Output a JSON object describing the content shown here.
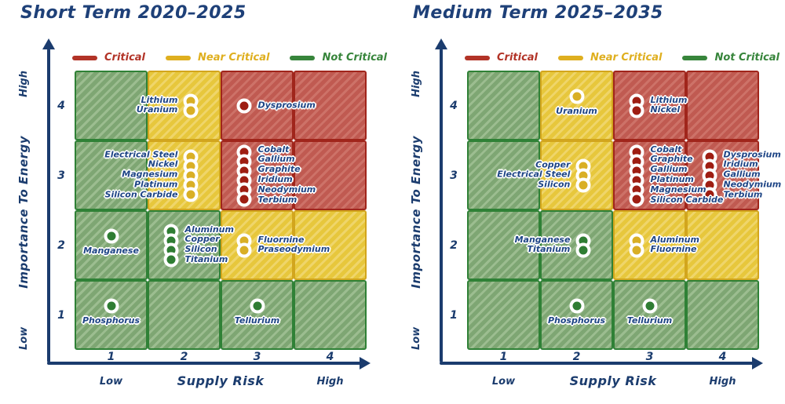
{
  "colors": {
    "title": "#1E4078",
    "axis": "#1B3C6E",
    "label-text": "#1E4586",
    "critical-fill": "#C05A51",
    "critical-stripe": "#CD7268",
    "critical-border": "#A0251B",
    "critical-dot": "#9E1D12",
    "critical-text": "#B23327",
    "near-fill": "#E7C73C",
    "near-stripe": "#EFD56A",
    "near-border": "#D2A51D",
    "near-dot": "#D9AF25",
    "near-text": "#DFAF1F",
    "not-fill": "#7EA673",
    "not-stripe": "#9CBD90",
    "not-border": "#2F8136",
    "not-dot": "#2F7D33",
    "not-text": "#37853B"
  },
  "legend": [
    {
      "key": "critical",
      "label": "Critical"
    },
    {
      "key": "near",
      "label": "Near Critical"
    },
    {
      "key": "not",
      "label": "Not Critical"
    }
  ],
  "chart_data": [
    {
      "type": "heatmap",
      "title": "Short Term 2020–2025",
      "xlabel": "Supply Risk",
      "ylabel": "Importance To Energy",
      "x_ticks": [
        "1",
        "2",
        "3",
        "4"
      ],
      "y_ticks": [
        "4",
        "3",
        "2",
        "1"
      ],
      "x_end_labels": [
        "Low",
        "High"
      ],
      "y_end_labels": [
        "Low",
        "High"
      ],
      "grid_status": [
        [
          "not",
          "near",
          "critical",
          "critical"
        ],
        [
          "not",
          "near",
          "critical",
          "critical"
        ],
        [
          "not",
          "not",
          "near",
          "near"
        ],
        [
          "not",
          "not",
          "not",
          "not"
        ]
      ],
      "points": [
        {
          "x": 2,
          "y": 4,
          "label_side": "left",
          "materials": [
            "Lithium",
            "Uranium"
          ]
        },
        {
          "x": 3,
          "y": 4,
          "label_side": "right",
          "materials": [
            "Dysprosium"
          ]
        },
        {
          "x": 2,
          "y": 3,
          "label_side": "left",
          "materials": [
            "Electrical Steel",
            "Nickel",
            "Magnesium",
            "Platinum",
            "Silicon Carbide"
          ]
        },
        {
          "x": 3,
          "y": 3,
          "label_side": "right",
          "materials": [
            "Cobalt",
            "Gallium",
            "Graphite",
            "Iridium",
            "Neodymium",
            "Terbium"
          ]
        },
        {
          "x": 1,
          "y": 2,
          "label_side": "below",
          "materials": [
            "Manganese"
          ]
        },
        {
          "x": 2,
          "y": 2,
          "label_side": "right",
          "materials": [
            "Aluminum",
            "Copper",
            "Silicon",
            "Titanium"
          ]
        },
        {
          "x": 3,
          "y": 2,
          "label_side": "right",
          "materials": [
            "Fluornine",
            "Praseodymium"
          ]
        },
        {
          "x": 1,
          "y": 1,
          "label_side": "below",
          "materials": [
            "Phosphorus"
          ]
        },
        {
          "x": 3,
          "y": 1,
          "label_side": "below",
          "materials": [
            "Tellurium"
          ]
        }
      ]
    },
    {
      "type": "heatmap",
      "title": "Medium Term 2025–2035",
      "xlabel": "Supply Risk",
      "ylabel": "Importance To Energy",
      "x_ticks": [
        "1",
        "2",
        "3",
        "4"
      ],
      "y_ticks": [
        "4",
        "3",
        "2",
        "1"
      ],
      "x_end_labels": [
        "Low",
        "High"
      ],
      "y_end_labels": [
        "Low",
        "High"
      ],
      "grid_status": [
        [
          "not",
          "near",
          "critical",
          "critical"
        ],
        [
          "not",
          "near",
          "critical",
          "critical"
        ],
        [
          "not",
          "not",
          "near",
          "near"
        ],
        [
          "not",
          "not",
          "not",
          "not"
        ]
      ],
      "points": [
        {
          "x": 2,
          "y": 4,
          "label_side": "below",
          "materials": [
            "Uranium"
          ]
        },
        {
          "x": 3,
          "y": 4,
          "label_side": "right",
          "materials": [
            "Lithium",
            "Nickel"
          ]
        },
        {
          "x": 2,
          "y": 3,
          "label_side": "left",
          "materials": [
            "Copper",
            "Electrical Steel",
            "Silicon"
          ]
        },
        {
          "x": 3,
          "y": 3,
          "label_side": "right",
          "materials": [
            "Cobalt",
            "Graphite",
            "Gallium",
            "Platinum",
            "Magnesium",
            "Silicon Carbide"
          ]
        },
        {
          "x": 4,
          "y": 3,
          "label_side": "right",
          "materials": [
            "Dysprosium",
            "Iridium",
            "Gallium",
            "Neodymium",
            "Terbium"
          ]
        },
        {
          "x": 2,
          "y": 2,
          "label_side": "left",
          "materials": [
            "Manganese",
            "Titanium"
          ]
        },
        {
          "x": 3,
          "y": 2,
          "label_side": "right",
          "materials": [
            "Aluminum",
            "Fluornine"
          ]
        },
        {
          "x": 2,
          "y": 1,
          "label_side": "below",
          "materials": [
            "Phosphorus"
          ]
        },
        {
          "x": 3,
          "y": 1,
          "label_side": "below",
          "materials": [
            "Tellurium"
          ]
        }
      ]
    }
  ]
}
